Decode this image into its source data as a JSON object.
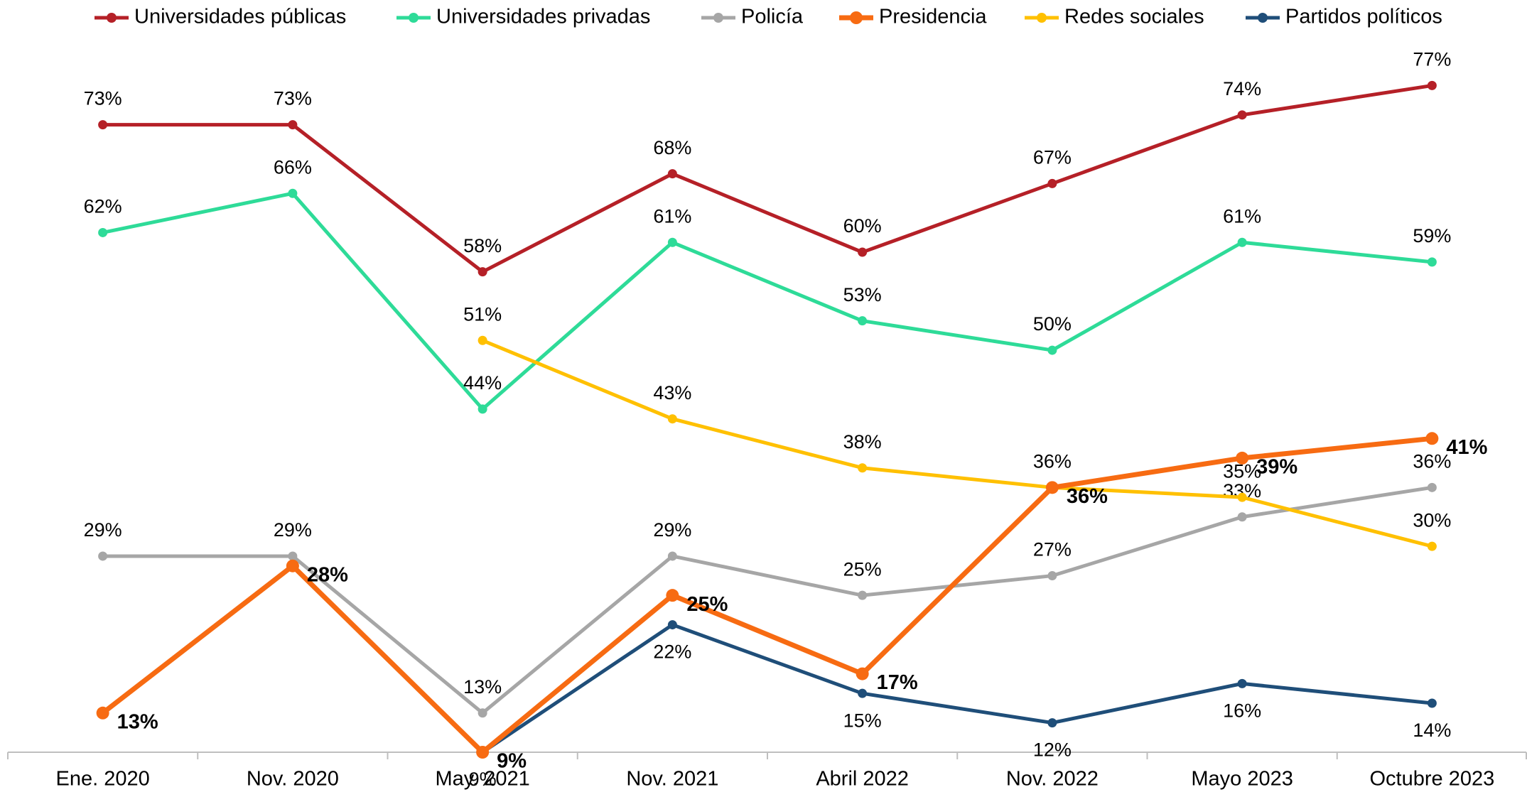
{
  "chart_data": {
    "type": "line",
    "categories": [
      "Ene. 2020",
      "Nov. 2020",
      "May. 2021",
      "Nov. 2021",
      "Abril 2022",
      "Nov. 2022",
      "Mayo 2023",
      "Octubre 2023"
    ],
    "ylim": [
      9,
      80
    ],
    "legend": "top",
    "series": [
      {
        "name": "Universidades públicas",
        "color": "#b52027",
        "values": [
          73,
          73,
          58,
          68,
          60,
          67,
          74,
          77
        ],
        "value_labels": [
          "73%",
          "73%",
          "58%",
          "68%",
          "60%",
          "67%",
          "74%",
          "77%"
        ]
      },
      {
        "name": "Universidades privadas",
        "color": "#2edb98",
        "values": [
          62,
          66,
          44,
          61,
          53,
          50,
          61,
          59
        ],
        "value_labels": [
          "62%",
          "66%",
          "44%",
          "61%",
          "53%",
          "50%",
          "61%",
          "59%"
        ]
      },
      {
        "name": "Policía",
        "color": "#a6a6a6",
        "values": [
          29,
          29,
          13,
          29,
          25,
          27,
          33,
          36
        ],
        "value_labels": [
          "29%",
          "29%",
          "13%",
          "29%",
          "25%",
          "27%",
          "33%",
          "36%"
        ]
      },
      {
        "name": "Presidencia",
        "color": "#f76b12",
        "values": [
          13,
          28,
          9,
          25,
          17,
          36,
          39,
          41
        ],
        "value_labels": [
          "13%",
          "28%",
          "9%",
          "25%",
          "17%",
          "36%",
          "39%",
          "41%"
        ]
      },
      {
        "name": "Redes sociales",
        "color": "#ffc000",
        "values": [
          null,
          null,
          51,
          43,
          38,
          36,
          35,
          30
        ],
        "value_labels": [
          null,
          null,
          "51%",
          "43%",
          "38%",
          "36%",
          "35%",
          "30%"
        ]
      },
      {
        "name": "Partidos políticos",
        "color": "#1f4e79",
        "values": [
          null,
          null,
          9,
          22,
          15,
          12,
          16,
          14
        ],
        "value_labels": [
          null,
          null,
          "9%",
          "22%",
          "15%",
          "12%",
          "16%",
          "14%"
        ]
      }
    ]
  }
}
